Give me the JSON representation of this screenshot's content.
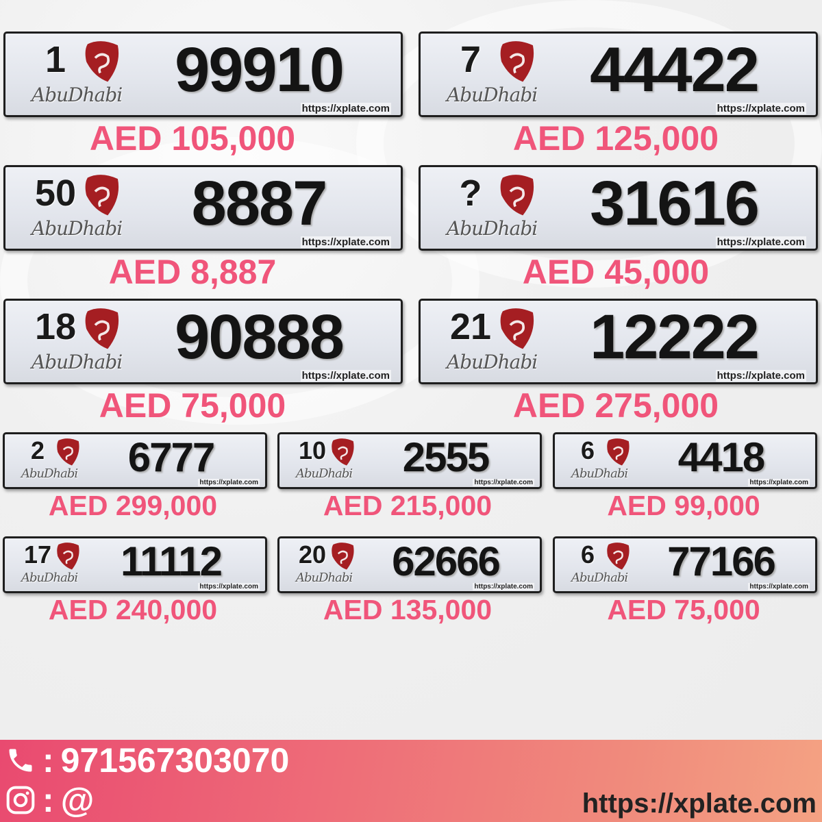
{
  "colors": {
    "price": "#f0557a",
    "logo": "#a51e22",
    "footer_start": "#e94a70",
    "footer_end": "#f4a283"
  },
  "plate_brand": "AbuDhabi",
  "watermark": "https://xplate.com",
  "plates": [
    {
      "code": "1",
      "number": "99910",
      "price": "AED 105,000"
    },
    {
      "code": "7",
      "number": "44422",
      "price": "AED 125,000"
    },
    {
      "code": "50",
      "number": "8887",
      "price": "AED 8,887"
    },
    {
      "code": "?",
      "number": "31616",
      "price": "AED 45,000"
    },
    {
      "code": "18",
      "number": "90888",
      "price": "AED 75,000"
    },
    {
      "code": "21",
      "number": "12222",
      "price": "AED 275,000"
    },
    {
      "code": "2",
      "number": "6777",
      "price": "AED 299,000"
    },
    {
      "code": "10",
      "number": "2555",
      "price": "AED 215,000"
    },
    {
      "code": "6",
      "number": "4418",
      "price": "AED 99,000"
    },
    {
      "code": "17",
      "number": "11112",
      "price": "AED 240,000"
    },
    {
      "code": "20",
      "number": "62666",
      "price": "AED 135,000"
    },
    {
      "code": "6",
      "number": "77166",
      "price": "AED 75,000"
    }
  ],
  "footer": {
    "phone_sep": ":",
    "phone": "971567303070",
    "instagram_sep": ":",
    "instagram": "@",
    "website": "https://xplate.com"
  }
}
